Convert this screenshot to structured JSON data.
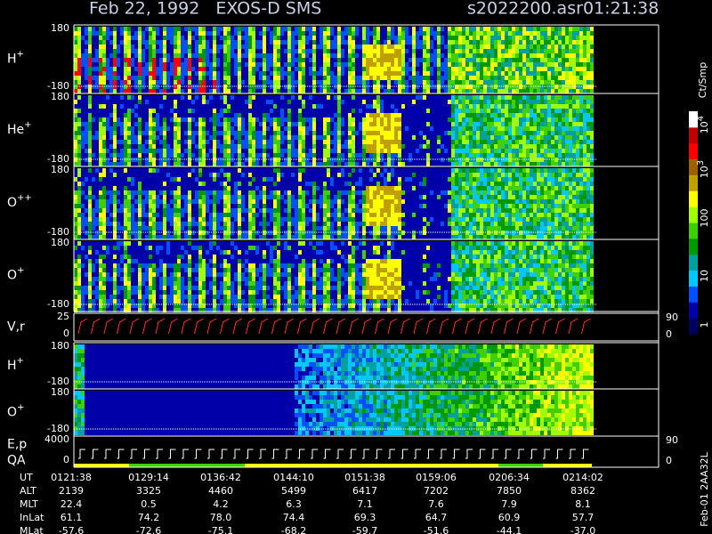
{
  "header": {
    "title": "Feb 22, 1992   EXOS-D SMS",
    "file": "s2022200.asr",
    "time": "01:21:38"
  },
  "panels": [
    {
      "label": "H",
      "charge": "+",
      "ticks": [
        "180",
        "-180"
      ]
    },
    {
      "label": "He",
      "charge": "+",
      "ticks": [
        "180",
        "-180"
      ]
    },
    {
      "label": "O",
      "charge": "++",
      "ticks": [
        "180",
        "-180"
      ]
    },
    {
      "label": "O",
      "charge": "+",
      "ticks": [
        "180",
        "-180"
      ]
    },
    {
      "label": "V,r",
      "ticks": [
        "25",
        "0"
      ],
      "right_ticks": [
        "90",
        "0"
      ]
    },
    {
      "label": "H",
      "charge": "+",
      "ticks": [
        "180",
        "-180"
      ]
    },
    {
      "label": "O",
      "charge": "+",
      "ticks": [
        "180",
        "-180"
      ]
    },
    {
      "label": "E,p",
      "label2": "QA",
      "ticks": [
        "4000",
        "0"
      ],
      "right_ticks": [
        "90",
        "0"
      ]
    }
  ],
  "colorbar": {
    "unit": "Ct/Smp",
    "ticks": [
      {
        "base": "10",
        "exp": "4"
      },
      {
        "base": "10",
        "exp": "3"
      },
      {
        "base": "100"
      },
      {
        "base": "10"
      },
      {
        "base": "1"
      }
    ]
  },
  "table": {
    "rows": [
      [
        "UT",
        "0121:38",
        "0129:14",
        "0136:42",
        "0144:10",
        "0151:38",
        "0159:06",
        "0206:34",
        "0214:02"
      ],
      [
        "ALT",
        "2139",
        "3325",
        "4460",
        "5499",
        "6417",
        "7202",
        "7850",
        "8362"
      ],
      [
        "MLT",
        "22.4",
        "0.5",
        "4.2",
        "6.3",
        "7.1",
        "7.6",
        "7.9",
        "8.1"
      ],
      [
        "InLat",
        "61.1",
        "74.2",
        "78.0",
        "74.4",
        "69.3",
        "64.7",
        "60.9",
        "57.7"
      ],
      [
        "MLat",
        "-57.6",
        "-72.6",
        "-75.1",
        "-68.2",
        "-59.7",
        "-51.6",
        "-44.1",
        "-37.0"
      ]
    ]
  },
  "footer": "Feb-01 2AA32L"
}
